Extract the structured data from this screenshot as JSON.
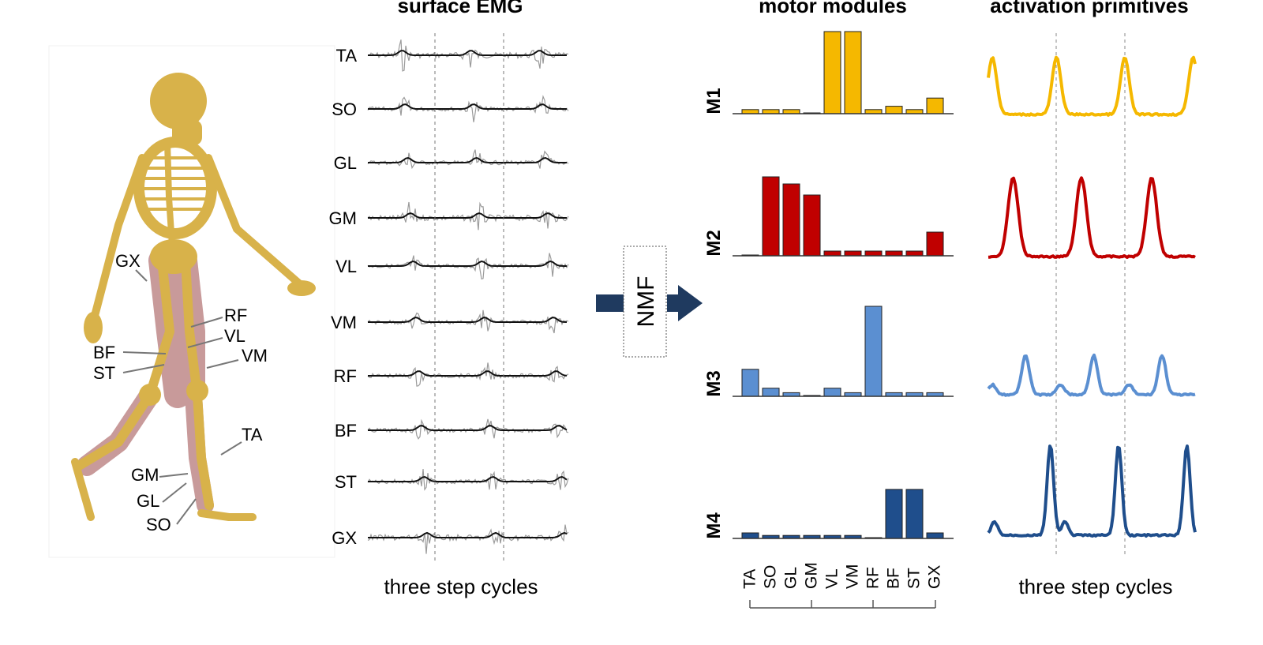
{
  "headings": {
    "emg": "surface EMG",
    "modules": "motor modules",
    "primitives": "activation primitives"
  },
  "x_caption": "three step cycles",
  "method_label": "NMF",
  "muscle_labels": [
    "TA",
    "SO",
    "GL",
    "GM",
    "VL",
    "VM",
    "RF",
    "BF",
    "ST",
    "GX"
  ],
  "body_labels": [
    {
      "key": "GX",
      "text": "GX"
    },
    {
      "key": "RF",
      "text": "RF"
    },
    {
      "key": "VL",
      "text": "VL"
    },
    {
      "key": "BF",
      "text": "BF"
    },
    {
      "key": "VM",
      "text": "VM"
    },
    {
      "key": "ST",
      "text": "ST"
    },
    {
      "key": "TA",
      "text": "TA"
    },
    {
      "key": "GM",
      "text": "GM"
    },
    {
      "key": "GL",
      "text": "GL"
    },
    {
      "key": "SO",
      "text": "SO"
    }
  ],
  "colors": {
    "M1": "#f5b800",
    "M2": "#c00000",
    "M3": "#5b8fd1",
    "M4": "#1f4e8c",
    "emg_raw": "#9b9b9b",
    "emg_env": "#111111",
    "arrow": "#1f3a5f",
    "bone": "#d8b24a",
    "muscle": "#c89a9a"
  },
  "icons": {
    "skeleton": "walking-skeleton-illustration",
    "arrow": "right-arrow-icon"
  },
  "chart_data": [
    {
      "type": "bar",
      "row_label": "M1",
      "categories": [
        "TA",
        "SO",
        "GL",
        "GM",
        "VL",
        "VM",
        "RF",
        "BF",
        "ST",
        "GX"
      ],
      "values": [
        0.05,
        0.05,
        0.05,
        0.01,
        1.0,
        1.0,
        0.05,
        0.09,
        0.05,
        0.19
      ]
    },
    {
      "type": "bar",
      "row_label": "M2",
      "categories": [
        "TA",
        "SO",
        "GL",
        "GM",
        "VL",
        "VM",
        "RF",
        "BF",
        "ST",
        "GX"
      ],
      "values": [
        0.01,
        1.0,
        0.91,
        0.77,
        0.06,
        0.06,
        0.06,
        0.06,
        0.06,
        0.3
      ]
    },
    {
      "type": "bar",
      "row_label": "M3",
      "categories": [
        "TA",
        "SO",
        "GL",
        "GM",
        "VL",
        "VM",
        "RF",
        "BF",
        "ST",
        "GX"
      ],
      "values": [
        0.3,
        0.09,
        0.04,
        0.01,
        0.09,
        0.04,
        1.0,
        0.04,
        0.04,
        0.04
      ]
    },
    {
      "type": "bar",
      "row_label": "M4",
      "categories": [
        "TA",
        "SO",
        "GL",
        "GM",
        "VL",
        "VM",
        "RF",
        "BF",
        "ST",
        "GX"
      ],
      "values": [
        0.11,
        0.06,
        0.06,
        0.06,
        0.06,
        0.06,
        0.01,
        0.97,
        0.97,
        0.11
      ]
    }
  ]
}
